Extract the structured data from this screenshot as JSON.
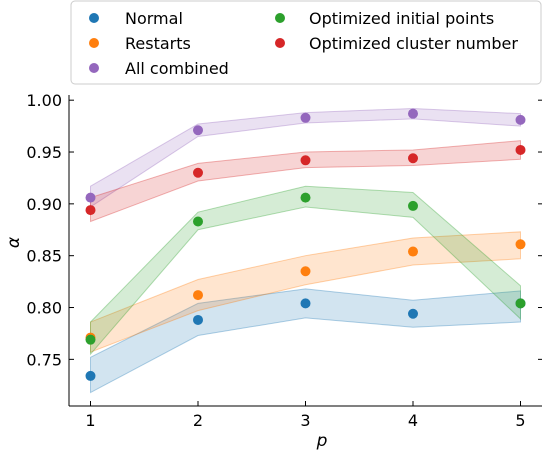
{
  "chart_data": {
    "type": "scatter",
    "title": "",
    "xlabel": "p",
    "ylabel": "α",
    "x": [
      1,
      2,
      3,
      4,
      5
    ],
    "xlim": [
      0.8,
      5.2
    ],
    "ylim": [
      0.705,
      1.005
    ],
    "xticks": [
      "1",
      "2",
      "3",
      "4",
      "5"
    ],
    "yticks": [
      "0.75",
      "0.80",
      "0.85",
      "0.90",
      "0.95",
      "1.00"
    ],
    "ytick_values": [
      0.75,
      0.8,
      0.85,
      0.9,
      0.95,
      1.0
    ],
    "grid": false,
    "legend_position": "top (above plot), two columns",
    "series": [
      {
        "name": "Normal",
        "color": "#1f77b4",
        "values": [
          0.734,
          0.788,
          0.804,
          0.794,
          0.804
        ],
        "band_lower": [
          0.718,
          0.773,
          0.79,
          0.781,
          0.786
        ],
        "band_upper": [
          0.752,
          0.804,
          0.818,
          0.807,
          0.816
        ]
      },
      {
        "name": "Restarts",
        "color": "#ff7f0e",
        "values": [
          0.771,
          0.812,
          0.835,
          0.854,
          0.861
        ],
        "band_lower": [
          0.757,
          0.797,
          0.822,
          0.841,
          0.847
        ],
        "band_upper": [
          0.786,
          0.827,
          0.85,
          0.867,
          0.873
        ]
      },
      {
        "name": "All combined",
        "color": "#9467bd",
        "values": [
          0.906,
          0.971,
          0.983,
          0.987,
          0.981
        ],
        "band_lower": [
          0.897,
          0.965,
          0.978,
          0.982,
          0.975
        ],
        "band_upper": [
          0.917,
          0.977,
          0.988,
          0.992,
          0.987
        ]
      },
      {
        "name": "Optimized initial points",
        "color": "#2ca02c",
        "values": [
          0.769,
          0.883,
          0.906,
          0.898,
          0.804
        ],
        "band_lower": [
          0.755,
          0.875,
          0.897,
          0.887,
          0.789
        ],
        "band_upper": [
          0.786,
          0.892,
          0.917,
          0.911,
          0.821
        ]
      },
      {
        "name": "Optimized cluster number",
        "color": "#d62728",
        "values": [
          0.894,
          0.93,
          0.942,
          0.944,
          0.952
        ],
        "band_lower": [
          0.883,
          0.922,
          0.935,
          0.937,
          0.943
        ],
        "band_upper": [
          0.906,
          0.939,
          0.95,
          0.952,
          0.961
        ]
      }
    ],
    "legend_order": [
      [
        "Normal",
        "Optimized initial points"
      ],
      [
        "Restarts",
        "Optimized cluster number"
      ],
      [
        "All combined"
      ]
    ]
  }
}
